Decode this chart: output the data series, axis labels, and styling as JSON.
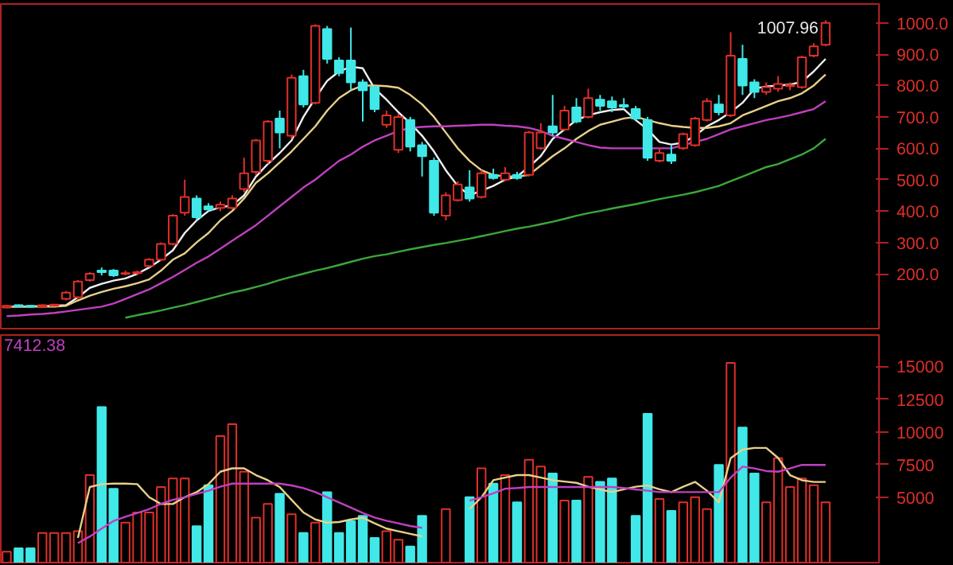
{
  "chart_data": [
    {
      "type": "candlestick",
      "categories": [
        null,
        null,
        null,
        null,
        null,
        null,
        null,
        null,
        null,
        null,
        null,
        null,
        null,
        null,
        null,
        null,
        null,
        null,
        null,
        null,
        null,
        null,
        null,
        null,
        null,
        null,
        null,
        null,
        null,
        null,
        null,
        null,
        null,
        null,
        null,
        null,
        null,
        null,
        null,
        null,
        null,
        null,
        null,
        null,
        null,
        null,
        null,
        null,
        null,
        null,
        null,
        null,
        null,
        null,
        null,
        null,
        null,
        null,
        null,
        null,
        null,
        null,
        null,
        null,
        null,
        null,
        null,
        null,
        null,
        null
      ],
      "ohlc": [
        [
          92,
          100,
          90,
          98
        ],
        [
          100,
          102,
          94,
          96
        ],
        [
          98,
          100,
          93,
          95
        ],
        [
          95,
          102,
          93,
          100
        ],
        [
          98,
          104,
          96,
          102
        ],
        [
          120,
          145,
          115,
          140
        ],
        [
          125,
          180,
          120,
          175
        ],
        [
          180,
          205,
          175,
          200
        ],
        [
          210,
          220,
          195,
          205
        ],
        [
          210,
          215,
          190,
          195
        ],
        [
          200,
          210,
          195,
          202
        ],
        [
          202,
          210,
          198,
          205
        ],
        [
          225,
          250,
          220,
          245
        ],
        [
          245,
          300,
          240,
          295
        ],
        [
          295,
          390,
          290,
          385
        ],
        [
          395,
          500,
          385,
          445
        ],
        [
          440,
          450,
          370,
          380
        ],
        [
          415,
          425,
          400,
          405
        ],
        [
          410,
          430,
          400,
          420
        ],
        [
          410,
          450,
          405,
          440
        ],
        [
          470,
          570,
          460,
          520
        ],
        [
          525,
          630,
          515,
          625
        ],
        [
          560,
          690,
          550,
          685
        ],
        [
          695,
          720,
          600,
          650
        ],
        [
          640,
          835,
          630,
          825
        ],
        [
          830,
          850,
          730,
          740
        ],
        [
          745,
          995,
          740,
          990
        ],
        [
          980,
          990,
          870,
          885
        ],
        [
          880,
          890,
          830,
          840
        ],
        [
          880,
          985,
          785,
          810
        ],
        [
          810,
          820,
          685,
          785
        ],
        [
          795,
          800,
          715,
          725
        ],
        [
          675,
          720,
          665,
          705
        ],
        [
          595,
          710,
          585,
          700
        ],
        [
          690,
          700,
          590,
          605
        ],
        [
          610,
          620,
          510,
          575
        ],
        [
          560,
          570,
          385,
          395
        ],
        [
          385,
          460,
          370,
          450
        ],
        [
          435,
          495,
          430,
          485
        ],
        [
          475,
          530,
          430,
          440
        ],
        [
          445,
          530,
          440,
          520
        ],
        [
          515,
          535,
          500,
          505
        ],
        [
          500,
          540,
          495,
          520
        ],
        [
          515,
          525,
          500,
          505
        ],
        [
          515,
          655,
          510,
          650
        ],
        [
          600,
          680,
          595,
          650
        ],
        [
          670,
          770,
          640,
          650
        ],
        [
          660,
          735,
          655,
          720
        ],
        [
          730,
          760,
          680,
          685
        ],
        [
          700,
          790,
          695,
          760
        ],
        [
          755,
          770,
          720,
          735
        ],
        [
          750,
          765,
          715,
          730
        ],
        [
          738,
          760,
          725,
          733
        ],
        [
          725,
          735,
          690,
          695
        ],
        [
          690,
          700,
          560,
          570
        ],
        [
          560,
          600,
          555,
          585
        ],
        [
          580,
          610,
          550,
          560
        ],
        [
          600,
          650,
          595,
          645
        ],
        [
          610,
          700,
          605,
          695
        ],
        [
          690,
          760,
          685,
          750
        ],
        [
          740,
          770,
          705,
          715
        ],
        [
          705,
          970,
          700,
          895
        ],
        [
          885,
          930,
          770,
          800
        ],
        [
          810,
          820,
          760,
          780
        ],
        [
          780,
          810,
          770,
          795
        ],
        [
          790,
          830,
          780,
          805
        ],
        [
          798,
          810,
          785,
          802
        ],
        [
          795,
          895,
          790,
          890
        ],
        [
          895,
          935,
          890,
          925
        ],
        [
          930,
          1007.96,
          925,
          1000
        ]
      ],
      "series": [
        {
          "type": "line",
          "color": "#f0f0f0",
          "values": [
            95,
            95,
            96,
            97,
            98,
            100,
            125,
            155,
            168,
            178,
            185,
            200,
            220,
            245,
            275,
            330,
            370,
            400,
            412,
            418,
            450,
            510,
            550,
            585,
            625,
            700,
            760,
            815,
            845,
            860,
            855,
            790,
            755,
            715,
            680,
            640,
            590,
            530,
            480,
            450,
            465,
            480,
            500,
            510,
            540,
            575,
            630,
            660,
            690,
            705,
            715,
            722,
            725,
            690,
            660,
            620,
            612,
            618,
            640,
            670,
            690,
            715,
            745,
            790,
            797,
            800,
            803,
            812,
            845,
            885
          ]
        },
        {
          "type": "line",
          "color": "#e8d08a",
          "values": [
            95,
            95,
            95,
            95,
            95,
            98,
            115,
            130,
            142,
            152,
            160,
            170,
            182,
            210,
            245,
            265,
            300,
            330,
            370,
            400,
            440,
            490,
            520,
            555,
            590,
            630,
            670,
            720,
            760,
            785,
            800,
            800,
            798,
            793,
            770,
            740,
            700,
            650,
            600,
            560,
            530,
            515,
            510,
            510,
            515,
            545,
            575,
            600,
            630,
            655,
            675,
            685,
            695,
            700,
            690,
            680,
            672,
            668,
            665,
            665,
            670,
            680,
            705,
            720,
            735,
            750,
            760,
            775,
            800,
            835
          ]
        },
        {
          "type": "line",
          "color": "#c040c0",
          "values": [
            65,
            67,
            70,
            72,
            75,
            80,
            85,
            90,
            95,
            105,
            120,
            135,
            150,
            170,
            190,
            212,
            235,
            255,
            280,
            305,
            330,
            355,
            385,
            415,
            445,
            475,
            500,
            530,
            560,
            580,
            605,
            625,
            640,
            655,
            665,
            668,
            670,
            670,
            672,
            673,
            675,
            675,
            672,
            670,
            665,
            655,
            640,
            630,
            620,
            610,
            602,
            600,
            600,
            600,
            600,
            600,
            600,
            610,
            620,
            630,
            645,
            660,
            670,
            680,
            690,
            697,
            705,
            715,
            725,
            750
          ]
        },
        {
          "type": "line",
          "color": "#3aa83a",
          "values": [
            null,
            null,
            null,
            null,
            null,
            null,
            null,
            null,
            null,
            null,
            60,
            68,
            75,
            83,
            92,
            100,
            110,
            120,
            130,
            140,
            148,
            158,
            168,
            180,
            190,
            200,
            210,
            218,
            228,
            238,
            248,
            256,
            262,
            270,
            278,
            285,
            292,
            298,
            305,
            312,
            320,
            328,
            336,
            344,
            350,
            358,
            366,
            375,
            385,
            393,
            400,
            408,
            415,
            422,
            430,
            438,
            445,
            452,
            460,
            470,
            480,
            495,
            510,
            525,
            540,
            550,
            565,
            580,
            600,
            630
          ]
        }
      ],
      "ylim": [
        25,
        1060
      ],
      "yticks": [
        {
          "value": 200,
          "label": "200.0"
        },
        {
          "value": 300,
          "label": "300.0"
        },
        {
          "value": 400,
          "label": "400.0"
        },
        {
          "value": 500,
          "label": "500.0"
        },
        {
          "value": 600,
          "label": "600.0"
        },
        {
          "value": 700,
          "label": "700.0"
        },
        {
          "value": 800,
          "label": "800.0"
        },
        {
          "value": 900,
          "label": "900.0"
        },
        {
          "value": 1000,
          "label": "1000.0"
        }
      ],
      "annotations": [
        "1007.96"
      ],
      "tick_labels": "y"
    },
    {
      "type": "bar",
      "categories": [
        null,
        null,
        null,
        null,
        null,
        null,
        null,
        null,
        null,
        null,
        null,
        null,
        null,
        null,
        null,
        null,
        null,
        null,
        null,
        null,
        null,
        null,
        null,
        null,
        null,
        null,
        null,
        null,
        null,
        null,
        null,
        null,
        null,
        null,
        null,
        null,
        null,
        null,
        null,
        null,
        null,
        null,
        null,
        null,
        null,
        null,
        null,
        null,
        null,
        null,
        null,
        null,
        null,
        null,
        null,
        null,
        null,
        null,
        null,
        null,
        null,
        null,
        null,
        null,
        null,
        null,
        null,
        null,
        null,
        null
      ],
      "series": [
        {
          "values": [
            840,
            1100,
            1100,
            2270,
            2270,
            2270,
            2400,
            6690,
            11890,
            5650,
            3050,
            3830,
            3830,
            5780,
            6430,
            6430,
            2790,
            5910,
            9680,
            10590,
            6950,
            3440,
            4480,
            5260,
            3700,
            2270,
            3050,
            5390,
            2270,
            3180,
            3570,
            1880,
            2400,
            1750,
            1230,
            3570,
            null,
            4090,
            null,
            5000,
            7210,
            6040,
            6690,
            4610,
            7860,
            7340,
            6820,
            4740,
            4740,
            6560,
            6170,
            6430,
            null,
            3570,
            11370,
            4870,
            3960,
            4610,
            5000,
            4090,
            7470,
            15270,
            10330,
            6820,
            4610,
            7990,
            5780,
            6430,
            5910,
            4610
          ],
          "colors": [
            "#e0302a",
            "#40e8e8",
            "#40e8e8",
            "#e0302a",
            "#e0302a",
            "#e0302a",
            "#e0302a",
            "#e0302a",
            "#40e8e8",
            "#40e8e8",
            "#e0302a",
            "#e0302a",
            "#e0302a",
            "#e0302a",
            "#e0302a",
            "#e0302a",
            "#40e8e8",
            "#40e8e8",
            "#e0302a",
            "#e0302a",
            "#e0302a",
            "#e0302a",
            "#e0302a",
            "#40e8e8",
            "#e0302a",
            "#40e8e8",
            "#e0302a",
            "#40e8e8",
            "#40e8e8",
            "#40e8e8",
            "#40e8e8",
            "#40e8e8",
            "#e0302a",
            "#e0302a",
            "#40e8e8",
            "#40e8e8",
            "#40e8e8",
            "#e0302a",
            "#e0302a",
            "#40e8e8",
            "#e0302a",
            "#40e8e8",
            "#e0302a",
            "#40e8e8",
            "#e0302a",
            "#e0302a",
            "#40e8e8",
            "#e0302a",
            "#40e8e8",
            "#e0302a",
            "#40e8e8",
            "#40e8e8",
            "#40e8e8",
            "#40e8e8",
            "#40e8e8",
            "#e0302a",
            "#40e8e8",
            "#e0302a",
            "#e0302a",
            "#e0302a",
            "#40e8e8",
            "#e0302a",
            "#40e8e8",
            "#40e8e8",
            "#e0302a",
            "#e0302a",
            "#e0302a",
            "#e0302a",
            "#e0302a",
            "#e0302a"
          ]
        },
        {
          "type": "line",
          "color": "#e8d08a",
          "values": [
            null,
            null,
            null,
            null,
            null,
            null,
            1880,
            5780,
            6000,
            6040,
            6040,
            6000,
            5000,
            4480,
            4480,
            5000,
            5390,
            6000,
            6950,
            7210,
            7210,
            6690,
            6300,
            5780,
            4800,
            3830,
            3300,
            3050,
            3100,
            3300,
            3440,
            3000,
            2600,
            2400,
            2200,
            2010,
            null,
            null,
            null,
            4090,
            5000,
            6300,
            6500,
            6690,
            6690,
            6500,
            6300,
            6200,
            6100,
            5800,
            5600,
            5390,
            5600,
            5800,
            5900,
            5600,
            5390,
            5800,
            6170,
            5500,
            4610,
            7990,
            8640,
            8770,
            8770,
            8000,
            6690,
            6300,
            6170,
            6170
          ]
        },
        {
          "type": "line",
          "color": "#c040c0",
          "values": [
            null,
            null,
            null,
            null,
            null,
            null,
            1490,
            2000,
            2600,
            3180,
            3500,
            3800,
            4090,
            4500,
            4800,
            5000,
            5260,
            5500,
            5800,
            6040,
            6040,
            6040,
            6040,
            6040,
            5900,
            5700,
            5390,
            5000,
            4600,
            4200,
            3800,
            3440,
            3200,
            3000,
            2800,
            2660,
            null,
            null,
            null,
            4740,
            5000,
            5300,
            5650,
            5700,
            5780,
            5780,
            5780,
            5780,
            5780,
            5780,
            5780,
            5780,
            5700,
            5600,
            5500,
            5390,
            5390,
            5390,
            5390,
            5390,
            5390,
            6500,
            7340,
            7200,
            7000,
            6950,
            7200,
            7470,
            7470,
            7470
          ]
        }
      ],
      "ylim": [
        0,
        17400
      ],
      "yticks": [
        5000,
        7500,
        10000,
        12500,
        15000
      ],
      "annotations": [
        "7412.38"
      ],
      "tick_labels": "y"
    }
  ]
}
